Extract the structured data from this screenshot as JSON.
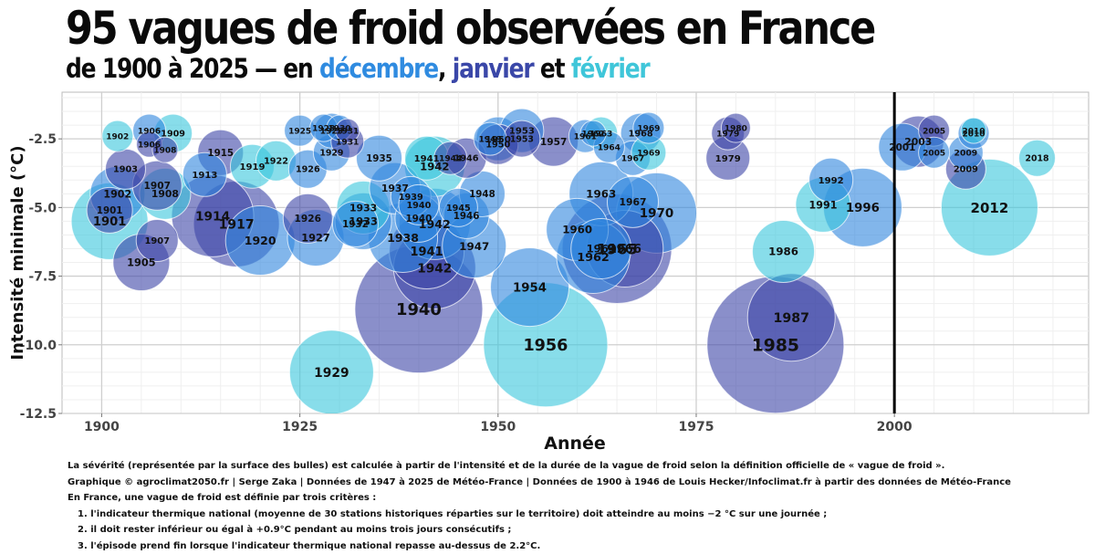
{
  "title": "95 vagues de froid observées en France",
  "subtitle": {
    "prefix": "de 1900 à 2025 — en",
    "dec": "décembre",
    "comma": ",",
    "jan": "janvier",
    "et": "et",
    "feb": "février"
  },
  "colors": {
    "decembre": "#2f8be0",
    "janvier": "#3a47a8",
    "fevrier": "#3fc6d9",
    "bubble_dec": "#2e86de",
    "bubble_jan": "#3c45a6",
    "bubble_feb": "#38c7dc",
    "reference_line": "#000000"
  },
  "footnotes": [
    "La sévérité (représentée par la surface des bulles) est calculée à partir de l'intensité et de la durée de la vague de froid selon la définition officielle de « vague de froid ».",
    "Graphique © agroclimat2050.fr | Serge Zaka | Données de 1947 à 2025 de Météo-France | Données de 1900 à 1946 de Louis Hecker/Infoclimat.fr à partir des données de Météo-France",
    "En France, une vague de froid est définie par trois critères :",
    "1. l'indicateur thermique national (moyenne de 30 stations historiques réparties sur le territoire) doit atteindre au moins −2 °C sur une journée ;",
    "2. il doit rester inférieur ou égal à +0.9°C pendant au moins trois jours consécutifs ;",
    "3. l'épisode prend fin lorsque l'indicateur thermique national repasse au-dessus de 2.2°C."
  ],
  "chart_data": {
    "type": "scatter",
    "variant": "bubble",
    "xlabel": "Année",
    "ylabel": "Intensité minimale (°C)",
    "xlim": [
      1895,
      2024.5
    ],
    "ylim": [
      -12.5,
      -0.8
    ],
    "x_ticks": [
      1900,
      1925,
      1950,
      1975,
      2000
    ],
    "y_ticks": [
      -2.5,
      -5.0,
      -7.5,
      -10.0,
      -12.5
    ],
    "y_tick_labels": [
      "-2.5",
      "-5.0",
      "-7.5",
      "-10.0",
      "-12.5"
    ],
    "reference_line_x": 2000,
    "size_encoding": "sévérité (surface)",
    "legend": "subtitle-colors",
    "grid": true,
    "points": [
      {
        "label": "1902",
        "year": 1902,
        "y": -2.4,
        "r": 17,
        "c": "f"
      },
      {
        "label": "1906",
        "year": 1906,
        "y": -2.2,
        "r": 18,
        "c": "d"
      },
      {
        "label": "1909",
        "year": 1909,
        "y": -2.3,
        "r": 21,
        "c": "f"
      },
      {
        "label": "1906",
        "year": 1906,
        "y": -2.7,
        "r": 14,
        "c": "j"
      },
      {
        "label": "1908",
        "year": 1908,
        "y": -2.9,
        "r": 14,
        "c": "j"
      },
      {
        "label": "1903",
        "year": 1903,
        "y": -3.6,
        "r": 22,
        "c": "j"
      },
      {
        "label": "1902",
        "year": 1902,
        "y": -4.5,
        "r": 30,
        "c": "d"
      },
      {
        "label": "1907",
        "year": 1907,
        "y": -4.2,
        "r": 27,
        "c": "j"
      },
      {
        "label": "1908",
        "year": 1908,
        "y": -4.5,
        "r": 28,
        "c": "f"
      },
      {
        "label": "1901",
        "year": 1901,
        "y": -5.1,
        "r": 25,
        "c": "j"
      },
      {
        "label": "1901",
        "year": 1901,
        "y": -5.5,
        "r": 42,
        "c": "f"
      },
      {
        "label": "1905",
        "year": 1905,
        "y": -7.0,
        "r": 31,
        "c": "j"
      },
      {
        "label": "1907",
        "year": 1907,
        "y": -6.2,
        "r": 23,
        "c": "j"
      },
      {
        "label": "1913",
        "year": 1913,
        "y": -3.8,
        "r": 24,
        "c": "d"
      },
      {
        "label": "1915",
        "year": 1915,
        "y": -3.0,
        "r": 25,
        "c": "j"
      },
      {
        "label": "1914",
        "year": 1914,
        "y": -5.3,
        "r": 45,
        "c": "j"
      },
      {
        "label": "1917",
        "year": 1917,
        "y": -5.6,
        "r": 47,
        "c": "j"
      },
      {
        "label": "1919",
        "year": 1919,
        "y": -3.5,
        "r": 24,
        "c": "f"
      },
      {
        "label": "1920",
        "year": 1920,
        "y": -6.2,
        "r": 38,
        "c": "d"
      },
      {
        "label": "1922",
        "year": 1922,
        "y": -3.3,
        "r": 22,
        "c": "f"
      },
      {
        "label": "1925",
        "year": 1925,
        "y": -2.2,
        "r": 17,
        "c": "d"
      },
      {
        "label": "1926",
        "year": 1926,
        "y": -3.6,
        "r": 21,
        "c": "d"
      },
      {
        "label": "1926",
        "year": 1926,
        "y": -5.4,
        "r": 27,
        "c": "j"
      },
      {
        "label": "1927",
        "year": 1927,
        "y": -6.1,
        "r": 31,
        "c": "d"
      },
      {
        "label": "1929",
        "year": 1929,
        "y": -2.2,
        "r": 19,
        "c": "d"
      },
      {
        "label": "1928",
        "year": 1928,
        "y": -2.1,
        "r": 15,
        "c": "d"
      },
      {
        "label": "1930",
        "year": 1930,
        "y": -2.1,
        "r": 14,
        "c": "d"
      },
      {
        "label": "1931",
        "year": 1931,
        "y": -2.2,
        "r": 13,
        "c": "j"
      },
      {
        "label": "1931",
        "year": 1931,
        "y": -2.6,
        "r": 18,
        "c": "j"
      },
      {
        "label": "1929",
        "year": 1929,
        "y": -3.0,
        "r": 20,
        "c": "d"
      },
      {
        "label": "1929",
        "year": 1929,
        "y": -11.0,
        "r": 46,
        "c": "f"
      },
      {
        "label": "1933",
        "year": 1933,
        "y": -5.0,
        "r": 29,
        "c": "f"
      },
      {
        "label": "1933",
        "year": 1933,
        "y": -5.5,
        "r": 31,
        "c": "d"
      },
      {
        "label": "1932",
        "year": 1932,
        "y": -5.6,
        "r": 25,
        "c": "d"
      },
      {
        "label": "1935",
        "year": 1935,
        "y": -3.2,
        "r": 25,
        "c": "d"
      },
      {
        "label": "1937",
        "year": 1937,
        "y": -4.3,
        "r": 28,
        "c": "d"
      },
      {
        "label": "1938",
        "year": 1938,
        "y": -6.1,
        "r": 38,
        "c": "d"
      },
      {
        "label": "1939",
        "year": 1939,
        "y": -4.6,
        "r": 22,
        "c": "d"
      },
      {
        "label": "1940",
        "year": 1940,
        "y": -4.9,
        "r": 22,
        "c": "d"
      },
      {
        "label": "1940",
        "year": 1940,
        "y": -5.4,
        "r": 26,
        "c": "d"
      },
      {
        "label": "1940",
        "year": 1940,
        "y": -8.7,
        "r": 70,
        "c": "j"
      },
      {
        "label": "1941",
        "year": 1941,
        "y": -3.2,
        "r": 24,
        "c": "f"
      },
      {
        "label": "1942",
        "year": 1942,
        "y": -3.5,
        "r": 33,
        "c": "f"
      },
      {
        "label": "1941",
        "year": 1941,
        "y": -6.6,
        "r": 41,
        "c": "j"
      },
      {
        "label": "1942",
        "year": 1942,
        "y": -7.2,
        "r": 45,
        "c": "j"
      },
      {
        "label": "1942",
        "year": 1942,
        "y": -5.6,
        "r": 39,
        "c": "d"
      },
      {
        "label": "1945",
        "year": 1945,
        "y": -5.0,
        "r": 21,
        "c": "d"
      },
      {
        "label": "1946",
        "year": 1946,
        "y": -5.3,
        "r": 25,
        "c": "d"
      },
      {
        "label": "1946",
        "year": 1946,
        "y": -3.2,
        "r": 22,
        "c": "j"
      },
      {
        "label": "1944",
        "year": 1944,
        "y": -3.2,
        "r": 18,
        "c": "j"
      },
      {
        "label": "1947",
        "year": 1947,
        "y": -6.4,
        "r": 35,
        "c": "d"
      },
      {
        "label": "1948",
        "year": 1948,
        "y": -4.5,
        "r": 25,
        "c": "d"
      },
      {
        "label": "1949",
        "year": 1949,
        "y": -2.5,
        "r": 18,
        "c": "d"
      },
      {
        "label": "1950",
        "year": 1950,
        "y": -2.5,
        "r": 24,
        "c": "d"
      },
      {
        "label": "1950",
        "year": 1950,
        "y": -2.7,
        "r": 22,
        "c": "j"
      },
      {
        "label": "1953",
        "year": 1953,
        "y": -2.2,
        "r": 24,
        "c": "d"
      },
      {
        "label": "1953",
        "year": 1953,
        "y": -2.5,
        "r": 20,
        "c": "j"
      },
      {
        "label": "1957",
        "year": 1957,
        "y": -2.6,
        "r": 27,
        "c": "j"
      },
      {
        "label": "1954",
        "year": 1954,
        "y": -7.9,
        "r": 43,
        "c": "d"
      },
      {
        "label": "1956",
        "year": 1956,
        "y": -10.0,
        "r": 68,
        "c": "f"
      },
      {
        "label": "1961",
        "year": 1961,
        "y": -2.4,
        "r": 18,
        "c": "d"
      },
      {
        "label": "1962",
        "year": 1962,
        "y": -2.3,
        "r": 14,
        "c": "d"
      },
      {
        "label": "1963",
        "year": 1963,
        "y": -2.3,
        "r": 18,
        "c": "f"
      },
      {
        "label": "1964",
        "year": 1964,
        "y": -2.8,
        "r": 17,
        "c": "d"
      },
      {
        "label": "1967",
        "year": 1967,
        "y": -3.2,
        "r": 19,
        "c": "d"
      },
      {
        "label": "1968",
        "year": 1968,
        "y": -2.3,
        "r": 22,
        "c": "d"
      },
      {
        "label": "1969",
        "year": 1969,
        "y": -2.1,
        "r": 17,
        "c": "d"
      },
      {
        "label": "1969",
        "year": 1969,
        "y": -3.0,
        "r": 19,
        "c": "f"
      },
      {
        "label": "1963",
        "year": 1963,
        "y": -4.5,
        "r": 35,
        "c": "d"
      },
      {
        "label": "1967",
        "year": 1967,
        "y": -4.8,
        "r": 28,
        "c": "d"
      },
      {
        "label": "1970",
        "year": 1970,
        "y": -5.2,
        "r": 44,
        "c": "d"
      },
      {
        "label": "1960",
        "year": 1960,
        "y": -5.8,
        "r": 34,
        "c": "d"
      },
      {
        "label": "1965",
        "year": 1965,
        "y": -6.5,
        "r": 60,
        "c": "j"
      },
      {
        "label": "1966",
        "year": 1966,
        "y": -6.5,
        "r": 42,
        "c": "j"
      },
      {
        "label": "1962",
        "year": 1962,
        "y": -6.8,
        "r": 40,
        "c": "d"
      },
      {
        "label": "1963",
        "year": 1963,
        "y": -6.5,
        "r": 33,
        "c": "d"
      },
      {
        "label": "1980",
        "year": 1980,
        "y": -2.1,
        "r": 16,
        "c": "j"
      },
      {
        "label": "1979",
        "year": 1979,
        "y": -2.3,
        "r": 18,
        "c": "j"
      },
      {
        "label": "1979",
        "year": 1979,
        "y": -3.2,
        "r": 24,
        "c": "j"
      },
      {
        "label": "1986",
        "year": 1986,
        "y": -6.6,
        "r": 34,
        "c": "f"
      },
      {
        "label": "1987",
        "year": 1987,
        "y": -9.0,
        "r": 48,
        "c": "j"
      },
      {
        "label": "1985",
        "year": 1985,
        "y": -10.0,
        "r": 75,
        "c": "j"
      },
      {
        "label": "1992",
        "year": 1992,
        "y": -4.0,
        "r": 24,
        "c": "d"
      },
      {
        "label": "1991",
        "year": 1991,
        "y": -4.9,
        "r": 30,
        "c": "f"
      },
      {
        "label": "1996",
        "year": 1996,
        "y": -5.0,
        "r": 43,
        "c": "d"
      },
      {
        "label": "2001",
        "year": 2001,
        "y": -2.8,
        "r": 26,
        "c": "d"
      },
      {
        "label": "2003",
        "year": 2003,
        "y": -2.6,
        "r": 28,
        "c": "j"
      },
      {
        "label": "2005",
        "year": 2005,
        "y": -2.2,
        "r": 17,
        "c": "j"
      },
      {
        "label": "2005",
        "year": 2005,
        "y": -3.0,
        "r": 17,
        "c": "d"
      },
      {
        "label": "2009",
        "year": 2009,
        "y": -3.0,
        "r": 19,
        "c": "d"
      },
      {
        "label": "2009",
        "year": 2009,
        "y": -3.6,
        "r": 22,
        "c": "j"
      },
      {
        "label": "2010",
        "year": 2010,
        "y": -2.2,
        "r": 14,
        "c": "f"
      },
      {
        "label": "2010",
        "year": 2010,
        "y": -2.3,
        "r": 17,
        "c": "d"
      },
      {
        "label": "2012",
        "year": 2012,
        "y": -5.0,
        "r": 53,
        "c": "f"
      },
      {
        "label": "2018",
        "year": 2018,
        "y": -3.2,
        "r": 20,
        "c": "f"
      }
    ]
  }
}
